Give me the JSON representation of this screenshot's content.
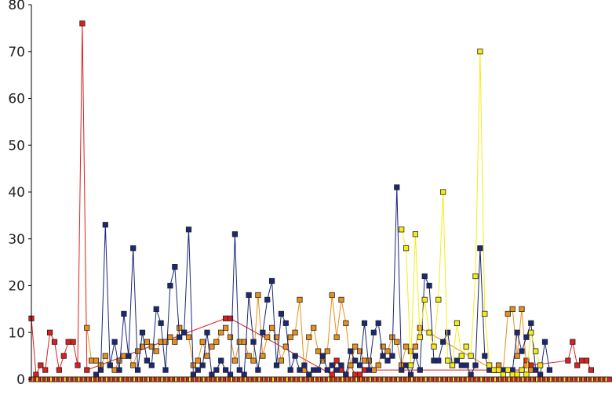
{
  "chart_data": {
    "type": "line",
    "title": "",
    "xlabel": "",
    "ylabel": "",
    "ylim": [
      0,
      80
    ],
    "y_ticks": [
      0,
      10,
      20,
      30,
      40,
      50,
      60,
      70,
      80
    ],
    "y_tick_labels": [
      "0",
      "10",
      "20",
      "30",
      "40",
      "50",
      "60",
      "70",
      "80"
    ],
    "x_ticks_shown": false,
    "grid": false,
    "legend": "none",
    "xlim": [
      0,
      125
    ],
    "series": [
      {
        "color": "#dc1f1f",
        "points": [
          [
            0,
            13
          ],
          [
            1,
            1
          ],
          [
            2,
            3
          ],
          [
            3,
            2
          ],
          [
            4,
            10
          ],
          [
            5,
            8
          ],
          [
            6,
            2
          ],
          [
            7,
            5
          ],
          [
            8,
            8
          ],
          [
            9,
            8
          ],
          [
            10,
            3
          ],
          [
            11,
            76
          ],
          [
            12,
            2
          ],
          [
            42,
            13
          ],
          [
            43,
            13
          ],
          [
            65,
            1
          ],
          [
            66,
            4
          ],
          [
            67,
            2
          ],
          [
            68,
            1
          ],
          [
            69,
            3
          ],
          [
            70,
            1
          ],
          [
            71,
            1
          ],
          [
            72,
            2
          ],
          [
            106,
            2
          ],
          [
            107,
            4
          ],
          [
            108,
            3
          ],
          [
            116,
            4
          ],
          [
            117,
            8
          ],
          [
            118,
            3
          ],
          [
            119,
            4
          ],
          [
            120,
            4
          ],
          [
            121,
            2
          ]
        ]
      },
      {
        "color": "#e8901c",
        "points": [
          [
            12,
            11
          ],
          [
            13,
            4
          ],
          [
            14,
            4
          ],
          [
            15,
            3
          ],
          [
            16,
            5
          ],
          [
            17,
            3
          ],
          [
            18,
            2
          ],
          [
            19,
            4
          ],
          [
            20,
            5
          ],
          [
            21,
            5
          ],
          [
            22,
            3
          ],
          [
            23,
            6
          ],
          [
            24,
            7
          ],
          [
            25,
            8
          ],
          [
            26,
            7
          ],
          [
            27,
            6
          ],
          [
            28,
            8
          ],
          [
            29,
            8
          ],
          [
            30,
            9
          ],
          [
            31,
            8
          ],
          [
            32,
            11
          ],
          [
            33,
            10
          ],
          [
            34,
            9
          ],
          [
            35,
            3
          ],
          [
            36,
            4
          ],
          [
            37,
            8
          ],
          [
            38,
            5
          ],
          [
            39,
            7
          ],
          [
            40,
            8
          ],
          [
            41,
            10
          ],
          [
            42,
            11
          ],
          [
            43,
            9
          ],
          [
            44,
            4
          ],
          [
            45,
            8
          ],
          [
            46,
            8
          ],
          [
            47,
            5
          ],
          [
            48,
            4
          ],
          [
            49,
            18
          ],
          [
            50,
            5
          ],
          [
            51,
            9
          ],
          [
            52,
            11
          ],
          [
            53,
            9
          ],
          [
            54,
            4
          ],
          [
            55,
            7
          ],
          [
            56,
            9
          ],
          [
            57,
            10
          ],
          [
            58,
            17
          ],
          [
            59,
            2
          ],
          [
            60,
            9
          ],
          [
            61,
            11
          ],
          [
            62,
            6
          ],
          [
            63,
            4
          ],
          [
            64,
            6
          ],
          [
            65,
            18
          ],
          [
            66,
            9
          ],
          [
            67,
            17
          ],
          [
            68,
            12
          ],
          [
            69,
            3
          ],
          [
            70,
            7
          ],
          [
            71,
            6
          ],
          [
            72,
            4
          ],
          [
            73,
            4
          ],
          [
            74,
            2
          ],
          [
            75,
            3
          ],
          [
            76,
            7
          ],
          [
            77,
            6
          ],
          [
            78,
            9
          ],
          [
            79,
            8
          ],
          [
            80,
            3
          ],
          [
            81,
            7
          ],
          [
            82,
            6
          ],
          [
            83,
            7
          ],
          [
            84,
            11
          ],
          [
            100,
            2
          ],
          [
            101,
            3
          ],
          [
            102,
            2
          ],
          [
            103,
            14
          ],
          [
            104,
            15
          ],
          [
            105,
            5
          ],
          [
            106,
            15
          ],
          [
            107,
            3
          ],
          [
            108,
            2
          ]
        ]
      },
      {
        "color": "#1b2777",
        "points": [
          [
            14,
            1
          ],
          [
            15,
            2
          ],
          [
            16,
            33
          ],
          [
            17,
            3
          ],
          [
            18,
            8
          ],
          [
            19,
            2
          ],
          [
            20,
            14
          ],
          [
            21,
            5
          ],
          [
            22,
            28
          ],
          [
            23,
            2
          ],
          [
            24,
            10
          ],
          [
            25,
            4
          ],
          [
            26,
            3
          ],
          [
            27,
            15
          ],
          [
            28,
            12
          ],
          [
            29,
            2
          ],
          [
            30,
            20
          ],
          [
            31,
            24
          ],
          [
            32,
            9
          ],
          [
            33,
            10
          ],
          [
            34,
            32
          ],
          [
            35,
            1
          ],
          [
            36,
            2
          ],
          [
            37,
            3
          ],
          [
            38,
            10
          ],
          [
            39,
            1
          ],
          [
            40,
            2
          ],
          [
            41,
            4
          ],
          [
            42,
            2
          ],
          [
            43,
            1
          ],
          [
            44,
            31
          ],
          [
            45,
            2
          ],
          [
            46,
            1
          ],
          [
            47,
            18
          ],
          [
            48,
            8
          ],
          [
            49,
            2
          ],
          [
            50,
            10
          ],
          [
            51,
            17
          ],
          [
            52,
            21
          ],
          [
            53,
            3
          ],
          [
            54,
            14
          ],
          [
            55,
            12
          ],
          [
            56,
            2
          ],
          [
            57,
            5
          ],
          [
            58,
            2
          ],
          [
            59,
            3
          ],
          [
            60,
            1
          ],
          [
            61,
            2
          ],
          [
            62,
            2
          ],
          [
            63,
            5
          ],
          [
            64,
            2
          ],
          [
            65,
            3
          ],
          [
            66,
            2
          ],
          [
            67,
            3
          ],
          [
            68,
            1
          ],
          [
            69,
            6
          ],
          [
            70,
            4
          ],
          [
            71,
            3
          ],
          [
            72,
            12
          ],
          [
            73,
            2
          ],
          [
            74,
            10
          ],
          [
            75,
            12
          ],
          [
            76,
            5
          ],
          [
            77,
            4
          ],
          [
            78,
            5
          ],
          [
            79,
            41
          ],
          [
            80,
            2
          ],
          [
            81,
            3
          ],
          [
            82,
            1
          ],
          [
            83,
            5
          ],
          [
            84,
            2
          ],
          [
            85,
            22
          ],
          [
            86,
            20
          ],
          [
            87,
            4
          ],
          [
            88,
            4
          ],
          [
            89,
            8
          ],
          [
            90,
            10
          ],
          [
            91,
            3
          ],
          [
            92,
            4
          ],
          [
            93,
            3
          ],
          [
            94,
            3
          ],
          [
            95,
            1
          ],
          [
            96,
            3
          ],
          [
            97,
            28
          ],
          [
            98,
            5
          ],
          [
            99,
            2
          ],
          [
            100,
            2
          ],
          [
            101,
            2
          ],
          [
            102,
            2
          ],
          [
            103,
            2
          ],
          [
            104,
            2
          ],
          [
            105,
            10
          ],
          [
            106,
            6
          ],
          [
            107,
            9
          ],
          [
            108,
            12
          ],
          [
            109,
            2
          ],
          [
            110,
            1
          ],
          [
            111,
            8
          ],
          [
            112,
            2
          ]
        ]
      },
      {
        "color": "#f5ec17",
        "points": [
          [
            80,
            32
          ],
          [
            81,
            28
          ],
          [
            82,
            3
          ],
          [
            83,
            31
          ],
          [
            84,
            9
          ],
          [
            85,
            17
          ],
          [
            86,
            10
          ],
          [
            87,
            7
          ],
          [
            88,
            17
          ],
          [
            89,
            40
          ],
          [
            90,
            4
          ],
          [
            91,
            3
          ],
          [
            92,
            12
          ],
          [
            93,
            5
          ],
          [
            94,
            7
          ],
          [
            95,
            5
          ],
          [
            96,
            22
          ],
          [
            97,
            70
          ],
          [
            98,
            14
          ],
          [
            99,
            3
          ],
          [
            100,
            2
          ],
          [
            101,
            2
          ],
          [
            102,
            1
          ],
          [
            103,
            2
          ],
          [
            104,
            1
          ],
          [
            105,
            1
          ],
          [
            106,
            2
          ],
          [
            107,
            1
          ],
          [
            108,
            10
          ],
          [
            109,
            6
          ],
          [
            110,
            3
          ]
        ]
      }
    ]
  }
}
